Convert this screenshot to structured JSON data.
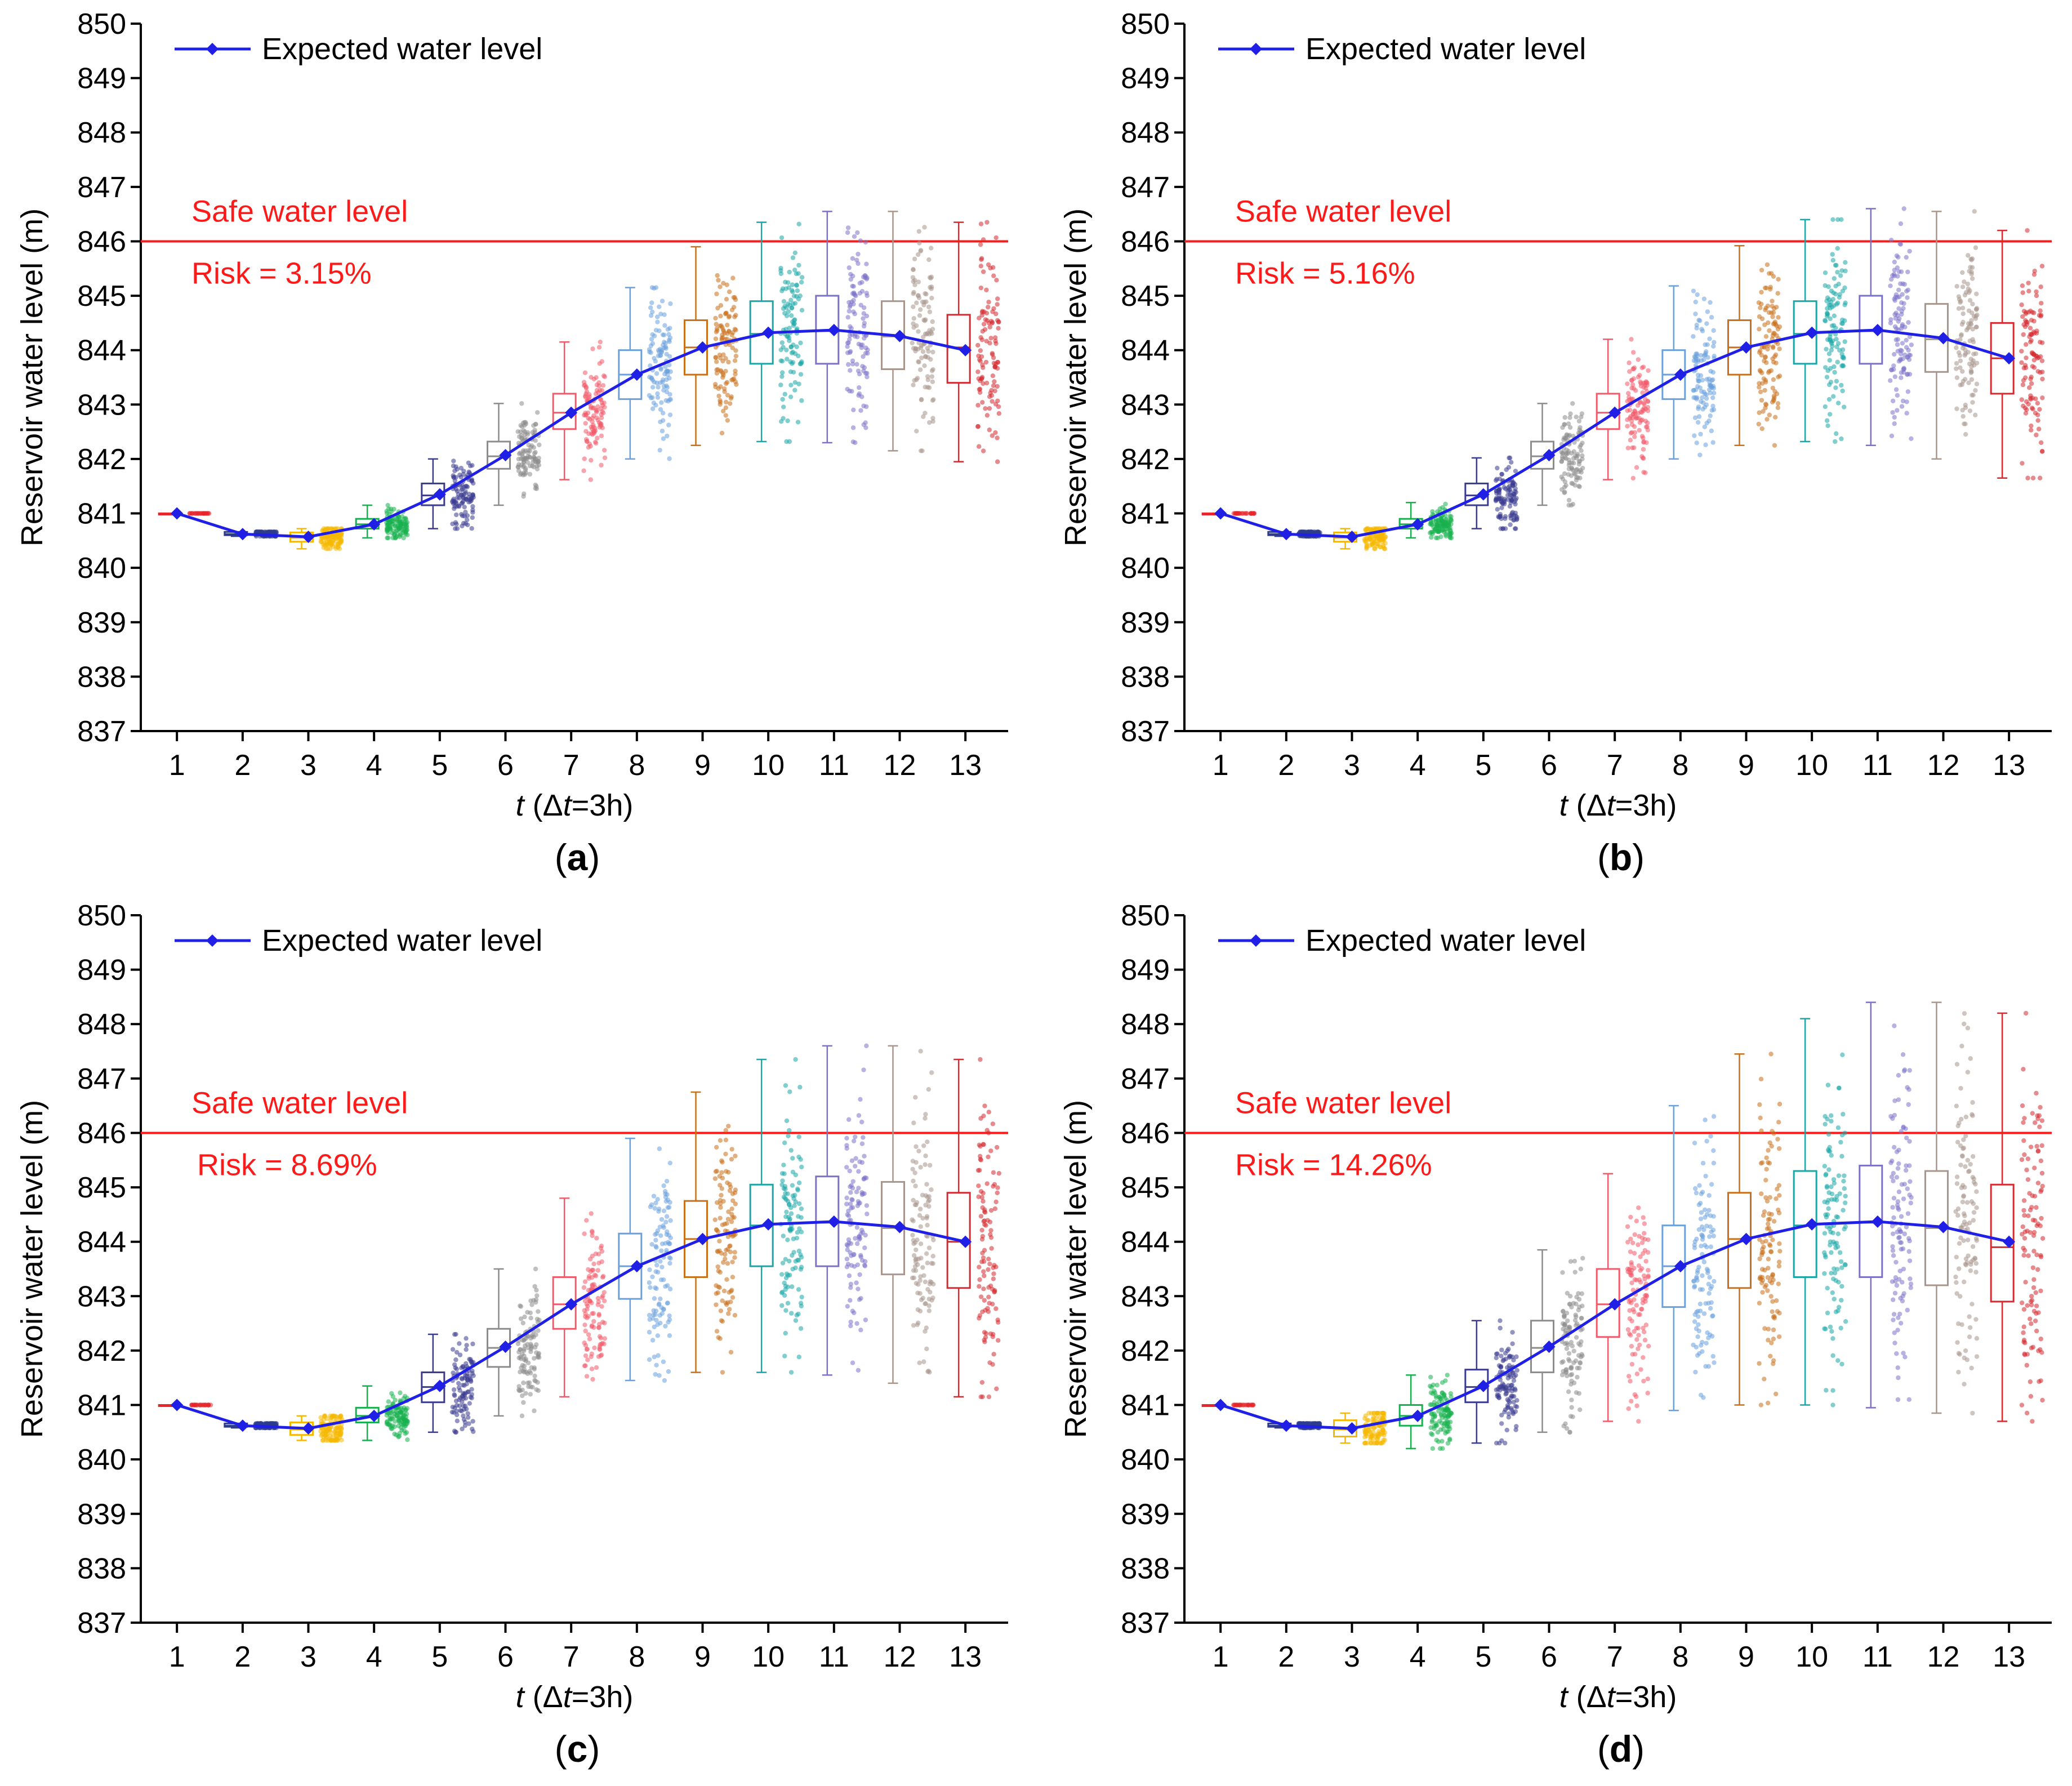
{
  "figure": {
    "colors": {
      "expected": "#1f1fe6",
      "safe": "#ff1a1a",
      "axis": "#000000",
      "groups": [
        "#e6262a",
        "#2d3d8c",
        "#f5b800",
        "#17b04f",
        "#3a3a8f",
        "#8c8c8c",
        "#f05a6a",
        "#6aa0dc",
        "#c8701a",
        "#1aa6a6",
        "#7b72c8",
        "#a8968c",
        "#d42a30"
      ]
    }
  },
  "chart_data": [
    {
      "id": "a",
      "type": "box",
      "caption_letter": "a",
      "xlabel_var": "t",
      "xlabel_rest": " (Δ",
      "xlabel_var2": "t",
      "xlabel_end": "=3h)",
      "ylabel": "Reservoir water level (m)",
      "categories": [
        "1",
        "2",
        "3",
        "4",
        "5",
        "6",
        "7",
        "8",
        "9",
        "10",
        "11",
        "12",
        "13"
      ],
      "yticks": [
        "837",
        "838",
        "839",
        "840",
        "841",
        "842",
        "843",
        "844",
        "845",
        "846",
        "847",
        "848",
        "849",
        "850"
      ],
      "ylim": [
        837,
        850
      ],
      "legend": "Expected water level",
      "safe_label": "Safe water level",
      "safe_level": 846,
      "risk_label": "Risk = 3.15%",
      "expected": [
        841.0,
        840.62,
        840.57,
        840.8,
        841.35,
        842.07,
        842.85,
        843.55,
        844.05,
        844.32,
        844.37,
        844.26,
        844.0
      ],
      "q1": [
        841.0,
        840.6,
        840.48,
        840.72,
        841.15,
        841.82,
        842.55,
        843.1,
        843.55,
        843.75,
        843.75,
        843.65,
        843.4
      ],
      "median": [
        841.0,
        840.62,
        840.55,
        840.8,
        841.33,
        842.05,
        842.85,
        843.55,
        844.05,
        844.3,
        844.35,
        844.25,
        844.05
      ],
      "q3": [
        841.0,
        840.66,
        840.65,
        840.9,
        841.55,
        842.32,
        843.2,
        844.0,
        844.55,
        844.9,
        845.0,
        844.9,
        844.65
      ],
      "min": [
        841.0,
        840.58,
        840.35,
        840.55,
        840.72,
        841.15,
        841.62,
        842.0,
        842.25,
        842.32,
        842.3,
        842.15,
        841.95
      ],
      "max": [
        841.0,
        840.66,
        840.72,
        841.15,
        842.0,
        843.02,
        844.15,
        845.15,
        845.9,
        846.35,
        846.55,
        846.55,
        846.35
      ]
    },
    {
      "id": "b",
      "type": "box",
      "caption_letter": "b",
      "xlabel_var": "t",
      "xlabel_rest": " (Δ",
      "xlabel_var2": "t",
      "xlabel_end": "=3h)",
      "ylabel": "Reservoir water level (m)",
      "categories": [
        "1",
        "2",
        "3",
        "4",
        "5",
        "6",
        "7",
        "8",
        "9",
        "10",
        "11",
        "12",
        "13"
      ],
      "yticks": [
        "837",
        "838",
        "839",
        "840",
        "841",
        "842",
        "843",
        "844",
        "845",
        "846",
        "847",
        "848",
        "849",
        "850"
      ],
      "ylim": [
        837,
        850
      ],
      "legend": "Expected water level",
      "safe_label": "Safe water level",
      "safe_level": 846,
      "risk_label": "Risk = 5.16%",
      "expected": [
        841.0,
        840.62,
        840.57,
        840.8,
        841.35,
        842.07,
        842.85,
        843.55,
        844.05,
        844.32,
        844.37,
        844.22,
        843.85
      ],
      "q1": [
        841.0,
        840.6,
        840.48,
        840.72,
        841.15,
        841.82,
        842.55,
        843.1,
        843.55,
        843.75,
        843.75,
        843.6,
        843.2
      ],
      "median": [
        841.0,
        840.62,
        840.55,
        840.8,
        841.33,
        842.05,
        842.85,
        843.55,
        844.05,
        844.3,
        844.35,
        844.2,
        843.85
      ],
      "q3": [
        841.0,
        840.66,
        840.65,
        840.9,
        841.55,
        842.32,
        843.2,
        844.0,
        844.55,
        844.9,
        845.0,
        844.85,
        844.5
      ],
      "min": [
        841.0,
        840.58,
        840.35,
        840.55,
        840.72,
        841.15,
        841.62,
        842.0,
        842.25,
        842.32,
        842.25,
        842.0,
        841.65
      ],
      "max": [
        841.0,
        840.66,
        840.72,
        841.2,
        842.02,
        843.02,
        844.2,
        845.18,
        845.92,
        846.4,
        846.6,
        846.55,
        846.2
      ]
    },
    {
      "id": "c",
      "type": "box",
      "caption_letter": "c",
      "xlabel_var": "t",
      "xlabel_rest": " (Δ",
      "xlabel_var2": "t",
      "xlabel_end": "=3h)",
      "ylabel": "Reservoir water level (m)",
      "categories": [
        "1",
        "2",
        "3",
        "4",
        "5",
        "6",
        "7",
        "8",
        "9",
        "10",
        "11",
        "12",
        "13"
      ],
      "yticks": [
        "837",
        "838",
        "839",
        "840",
        "841",
        "842",
        "843",
        "844",
        "845",
        "846",
        "847",
        "848",
        "849",
        "850"
      ],
      "ylim": [
        837,
        850
      ],
      "legend": "Expected water level",
      "safe_label": "Safe water level",
      "safe_level": 846,
      "risk_label": "Risk = 8.69%",
      "expected": [
        841.0,
        840.62,
        840.57,
        840.8,
        841.35,
        842.07,
        842.85,
        843.55,
        844.05,
        844.32,
        844.37,
        844.27,
        844.0
      ],
      "q1": [
        841.0,
        840.6,
        840.45,
        840.68,
        841.05,
        841.7,
        842.4,
        842.95,
        843.35,
        843.55,
        843.55,
        843.4,
        843.15
      ],
      "median": [
        841.0,
        840.62,
        840.55,
        840.8,
        841.33,
        842.05,
        842.85,
        843.55,
        844.05,
        844.3,
        844.35,
        844.25,
        844.0
      ],
      "q3": [
        841.0,
        840.66,
        840.68,
        840.95,
        841.6,
        842.4,
        843.35,
        844.15,
        844.75,
        845.05,
        845.2,
        845.1,
        844.9
      ],
      "min": [
        841.0,
        840.58,
        840.35,
        840.35,
        840.5,
        840.8,
        841.15,
        841.45,
        841.6,
        841.6,
        841.55,
        841.4,
        841.15
      ],
      "max": [
        841.0,
        840.66,
        840.8,
        841.35,
        842.3,
        843.5,
        844.8,
        845.9,
        846.75,
        847.35,
        847.6,
        847.6,
        847.35
      ]
    },
    {
      "id": "d",
      "type": "box",
      "caption_letter": "d",
      "xlabel_var": "t",
      "xlabel_rest": " (Δ",
      "xlabel_var2": "t",
      "xlabel_end": "=3h)",
      "ylabel": "Reservoir water level (m)",
      "categories": [
        "1",
        "2",
        "3",
        "4",
        "5",
        "6",
        "7",
        "8",
        "9",
        "10",
        "11",
        "12",
        "13"
      ],
      "yticks": [
        "837",
        "838",
        "839",
        "840",
        "841",
        "842",
        "843",
        "844",
        "845",
        "846",
        "847",
        "848",
        "849",
        "850"
      ],
      "ylim": [
        837,
        850
      ],
      "legend": "Expected water level",
      "safe_label": "Safe water level",
      "safe_level": 846,
      "risk_label": "Risk = 14.26%",
      "expected": [
        841.0,
        840.62,
        840.57,
        840.8,
        841.35,
        842.07,
        842.85,
        843.55,
        844.05,
        844.32,
        844.37,
        844.27,
        844.0
      ],
      "q1": [
        841.0,
        840.6,
        840.42,
        840.62,
        841.05,
        841.6,
        842.25,
        842.8,
        843.15,
        843.35,
        843.35,
        843.2,
        842.9
      ],
      "median": [
        841.0,
        840.62,
        840.55,
        840.8,
        841.33,
        842.05,
        842.85,
        843.55,
        844.05,
        844.3,
        844.35,
        844.25,
        843.9
      ],
      "q3": [
        841.0,
        840.66,
        840.72,
        841.0,
        841.65,
        842.55,
        843.5,
        844.3,
        844.9,
        845.3,
        845.4,
        845.3,
        845.05
      ],
      "min": [
        841.0,
        840.58,
        840.3,
        840.2,
        840.3,
        840.5,
        840.7,
        840.9,
        841.0,
        841.0,
        840.95,
        840.85,
        840.7
      ],
      "max": [
        841.0,
        840.66,
        840.85,
        841.55,
        842.55,
        843.85,
        845.25,
        846.5,
        847.45,
        848.1,
        848.4,
        848.4,
        848.2
      ]
    }
  ]
}
